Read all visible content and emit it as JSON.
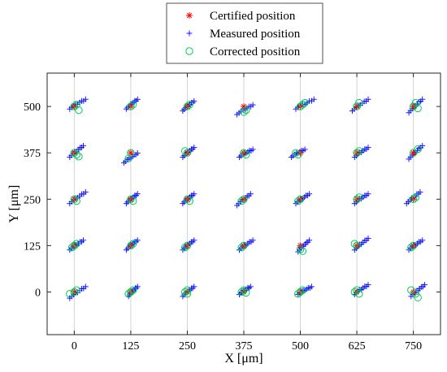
{
  "chart_data": {
    "type": "scatter",
    "xlabel": "X [μm]",
    "ylabel": "Y [μm]",
    "xlim": [
      -60,
      810
    ],
    "ylim": [
      -115,
      590
    ],
    "xticks": [
      0,
      125,
      250,
      375,
      500,
      625,
      750
    ],
    "yticks": [
      0,
      125,
      250,
      375,
      500
    ],
    "tick_labels_x": [
      "0",
      "125",
      "250",
      "375",
      "500",
      "625",
      "750"
    ],
    "tick_labels_y": [
      "0",
      "125",
      "250",
      "375",
      "500"
    ],
    "grid": true,
    "grid_axis": "x",
    "legend_position": "top-center, outside plot",
    "series": [
      {
        "name": "Certified position",
        "marker": "asterisk",
        "color": "#ff0000",
        "points": [
          [
            0,
            0
          ],
          [
            125,
            0
          ],
          [
            250,
            0
          ],
          [
            375,
            0
          ],
          [
            500,
            0
          ],
          [
            625,
            0
          ],
          [
            750,
            0
          ],
          [
            0,
            125
          ],
          [
            125,
            125
          ],
          [
            250,
            125
          ],
          [
            375,
            125
          ],
          [
            500,
            125
          ],
          [
            625,
            125
          ],
          [
            750,
            125
          ],
          [
            0,
            250
          ],
          [
            125,
            250
          ],
          [
            250,
            250
          ],
          [
            375,
            250
          ],
          [
            500,
            250
          ],
          [
            625,
            250
          ],
          [
            750,
            250
          ],
          [
            0,
            375
          ],
          [
            125,
            375
          ],
          [
            250,
            375
          ],
          [
            375,
            375
          ],
          [
            500,
            375
          ],
          [
            625,
            375
          ],
          [
            750,
            375
          ],
          [
            0,
            500
          ],
          [
            125,
            500
          ],
          [
            250,
            500
          ],
          [
            375,
            500
          ],
          [
            500,
            500
          ],
          [
            625,
            500
          ],
          [
            750,
            500
          ]
        ]
      },
      {
        "name": "Measured position",
        "marker": "plus",
        "color": "#0000ff",
        "clusters": [
          [
            -10,
            -15,
            25,
            15
          ],
          [
            120,
            -10,
            140,
            15
          ],
          [
            240,
            -10,
            265,
            15
          ],
          [
            365,
            -5,
            390,
            15
          ],
          [
            495,
            -5,
            525,
            15
          ],
          [
            620,
            -5,
            650,
            20
          ],
          [
            745,
            -10,
            775,
            20
          ],
          [
            -10,
            115,
            20,
            140
          ],
          [
            115,
            115,
            140,
            140
          ],
          [
            240,
            115,
            265,
            140
          ],
          [
            365,
            115,
            395,
            140
          ],
          [
            495,
            110,
            520,
            140
          ],
          [
            620,
            115,
            650,
            145
          ],
          [
            740,
            115,
            770,
            140
          ],
          [
            -10,
            240,
            25,
            270
          ],
          [
            115,
            240,
            140,
            265
          ],
          [
            240,
            240,
            265,
            265
          ],
          [
            360,
            235,
            390,
            265
          ],
          [
            490,
            240,
            520,
            265
          ],
          [
            620,
            240,
            650,
            265
          ],
          [
            735,
            240,
            765,
            270
          ],
          [
            -10,
            365,
            20,
            395
          ],
          [
            110,
            350,
            140,
            375
          ],
          [
            240,
            365,
            265,
            390
          ],
          [
            365,
            365,
            395,
            385
          ],
          [
            480,
            365,
            510,
            385
          ],
          [
            620,
            365,
            650,
            390
          ],
          [
            740,
            360,
            770,
            395
          ],
          [
            -10,
            495,
            25,
            520
          ],
          [
            115,
            495,
            140,
            520
          ],
          [
            240,
            490,
            265,
            515
          ],
          [
            360,
            480,
            395,
            505
          ],
          [
            490,
            495,
            530,
            520
          ],
          [
            615,
            490,
            650,
            520
          ],
          [
            740,
            485,
            770,
            520
          ]
        ]
      },
      {
        "name": "Corrected position",
        "marker": "circle",
        "color": "#00cc55",
        "points": [
          [
            -10,
            -5
          ],
          [
            0,
            0
          ],
          [
            5,
            5
          ],
          [
            120,
            -5
          ],
          [
            125,
            0
          ],
          [
            130,
            5
          ],
          [
            245,
            0
          ],
          [
            250,
            5
          ],
          [
            250,
            -5
          ],
          [
            370,
            0
          ],
          [
            375,
            5
          ],
          [
            380,
            -2
          ],
          [
            500,
            0
          ],
          [
            505,
            5
          ],
          [
            495,
            -5
          ],
          [
            620,
            0
          ],
          [
            625,
            5
          ],
          [
            630,
            -5
          ],
          [
            745,
            5
          ],
          [
            755,
            -5
          ],
          [
            760,
            -15
          ],
          [
            0,
            125
          ],
          [
            5,
            130
          ],
          [
            -5,
            120
          ],
          [
            125,
            125
          ],
          [
            130,
            130
          ],
          [
            250,
            125
          ],
          [
            245,
            120
          ],
          [
            375,
            125
          ],
          [
            370,
            120
          ],
          [
            500,
            115
          ],
          [
            505,
            110
          ],
          [
            625,
            125
          ],
          [
            620,
            130
          ],
          [
            750,
            125
          ],
          [
            745,
            120
          ],
          [
            0,
            250
          ],
          [
            5,
            245
          ],
          [
            125,
            250
          ],
          [
            130,
            245
          ],
          [
            250,
            250
          ],
          [
            255,
            245
          ],
          [
            375,
            250
          ],
          [
            370,
            245
          ],
          [
            500,
            250
          ],
          [
            495,
            245
          ],
          [
            625,
            250
          ],
          [
            630,
            255
          ],
          [
            750,
            250
          ],
          [
            755,
            255
          ],
          [
            0,
            375
          ],
          [
            5,
            370
          ],
          [
            10,
            365
          ],
          [
            125,
            375
          ],
          [
            120,
            360
          ],
          [
            250,
            375
          ],
          [
            245,
            380
          ],
          [
            375,
            375
          ],
          [
            380,
            370
          ],
          [
            490,
            375
          ],
          [
            495,
            370
          ],
          [
            625,
            375
          ],
          [
            630,
            380
          ],
          [
            750,
            375
          ],
          [
            760,
            385
          ],
          [
            0,
            500
          ],
          [
            5,
            505
          ],
          [
            10,
            490
          ],
          [
            125,
            500
          ],
          [
            130,
            505
          ],
          [
            250,
            500
          ],
          [
            255,
            505
          ],
          [
            375,
            485
          ],
          [
            380,
            490
          ],
          [
            500,
            500
          ],
          [
            505,
            505
          ],
          [
            510,
            510
          ],
          [
            625,
            500
          ],
          [
            630,
            510
          ],
          [
            750,
            500
          ],
          [
            755,
            510
          ],
          [
            760,
            495
          ]
        ]
      }
    ]
  },
  "colors": {
    "certified": "#ff0000",
    "measured": "#0000ff",
    "corrected": "#00cc55",
    "grid": "#d4d4d4",
    "axis": "#262626"
  }
}
